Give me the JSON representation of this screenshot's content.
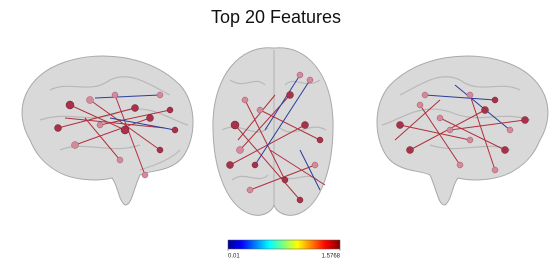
{
  "title": "Top 20 Features",
  "colorbar": {
    "lim": [
      0.01,
      1.5768
    ],
    "ticks": [
      0.01,
      1.5768
    ]
  }
}
